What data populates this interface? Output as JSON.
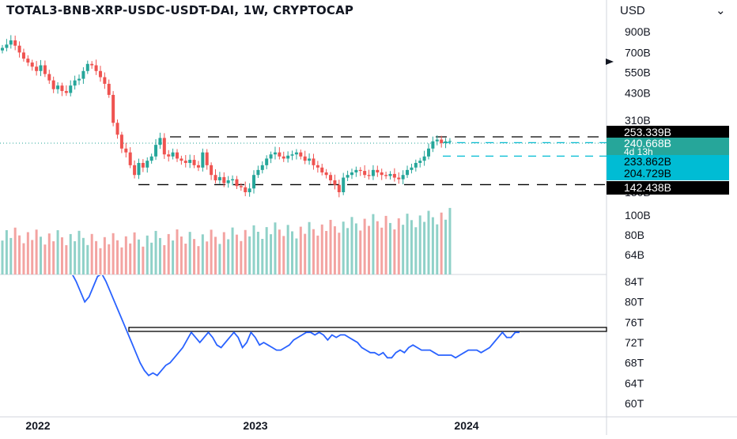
{
  "header": {
    "title": "TOTAL3-BNB-XRP-USDC-USDT-DAI, 1W, CRYPTOCAP",
    "currency": "USD",
    "chevron_icon": "chevron-down-icon"
  },
  "colors": {
    "up": "#26a69a",
    "down": "#ef5350",
    "up_vol": "#8fd1c8",
    "down_vol": "#f3a3a1",
    "indicator": "#2962ff",
    "cyan": "#00bcd4",
    "teal": "#26a69a",
    "black": "#000000"
  },
  "chart_data": [
    {
      "type": "candlestick",
      "title": "TOTAL3-BNB-XRP-USDC-USDT-DAI, 1W, CRYPTOCAP",
      "y_scale": "log",
      "y_ticks": [
        "900B",
        "700B",
        "550B",
        "430B",
        "310B",
        "130B",
        "100B",
        "80B",
        "64B"
      ],
      "x_ticks": [
        "2022",
        "2023",
        "2024"
      ],
      "x_range": [
        "2021-11-22",
        "2024-06-24"
      ],
      "price_range_billions": [
        130,
        900
      ],
      "levels": [
        {
          "value": 253.339,
          "label": "253.339B",
          "style": "black-dashed"
        },
        {
          "value": 142.438,
          "label": "142.438B",
          "style": "black-dashed"
        },
        {
          "value": 233.862,
          "label": "233.862B",
          "style": "cyan-dashed"
        },
        {
          "value": 204.729,
          "label": "204.729B",
          "style": "cyan-dashed"
        }
      ],
      "last_price": {
        "label": "240.668B",
        "countdown": "4d 13h"
      },
      "close_billions": [
        740,
        770,
        810,
        760,
        700,
        650,
        620,
        590,
        560,
        600,
        540,
        500,
        450,
        470,
        440,
        430,
        470,
        500,
        510,
        560,
        610,
        600,
        560,
        520,
        480,
        420,
        300,
        260,
        220,
        210,
        180,
        160,
        185,
        175,
        190,
        200,
        230,
        250,
        205,
        200,
        210,
        195,
        190,
        185,
        192,
        180,
        175,
        210,
        180,
        160,
        150,
        156,
        145,
        150,
        152,
        140,
        138,
        130,
        136,
        160,
        170,
        180,
        195,
        205,
        210,
        200,
        195,
        202,
        205,
        210,
        200,
        190,
        195,
        180,
        175,
        165,
        160,
        150,
        142,
        130,
        155,
        160,
        165,
        170,
        168,
        160,
        158,
        170,
        165,
        160,
        158,
        162,
        155,
        152,
        160,
        170,
        175,
        185,
        190,
        200,
        220,
        240,
        245,
        235,
        240,
        241
      ],
      "volume_billions": [
        86,
        85,
        84,
        83,
        82,
        81,
        81,
        80,
        79,
        79,
        78,
        78,
        77,
        77,
        77,
        76,
        76,
        76,
        75,
        75,
        75,
        75,
        75,
        75,
        75,
        75,
        75,
        75,
        75,
        75,
        75,
        75,
        75,
        75,
        75,
        75,
        76,
        76,
        76,
        76,
        77,
        77,
        77,
        77,
        78,
        78,
        78,
        79,
        79,
        80,
        80,
        80,
        81,
        81,
        82,
        82,
        83,
        83,
        84,
        84,
        85,
        85,
        86,
        86,
        87,
        87,
        88,
        88,
        89,
        89,
        90,
        90,
        91,
        91,
        92,
        92,
        93,
        93,
        94,
        95,
        95,
        96,
        96,
        97,
        97,
        98,
        98,
        99,
        99,
        100,
        101,
        101,
        102,
        102,
        103,
        103,
        104,
        104,
        105,
        106,
        106,
        107,
        107,
        108,
        108,
        109
      ]
    },
    {
      "type": "line",
      "y_ticks": [
        "84T",
        "80T",
        "76T",
        "72T",
        "68T",
        "64T",
        "60T"
      ],
      "y_range_trillions": [
        58,
        86
      ],
      "resistance_trillions": 74.5,
      "values_trillions": [
        86,
        84,
        82,
        80,
        81,
        83,
        85,
        86,
        84,
        82,
        80,
        78,
        76,
        74,
        72,
        70,
        68,
        66.5,
        65.5,
        66,
        65.5,
        66.5,
        67.5,
        68,
        69,
        70,
        71,
        72.5,
        74,
        73,
        72,
        73,
        74,
        73,
        71.5,
        71,
        72,
        73,
        74,
        73,
        71,
        72,
        74,
        73,
        71.5,
        72,
        71.5,
        71,
        70.5,
        70.5,
        71,
        71.5,
        72.5,
        73,
        73.5,
        74,
        74,
        73.5,
        74,
        73.5,
        72.5,
        73.5,
        73,
        73.5,
        73.5,
        73,
        72.5,
        72,
        71,
        70.5,
        70,
        70,
        69.5,
        70,
        69,
        69,
        70,
        70.5,
        70,
        71,
        71.5,
        71,
        70.5,
        70.5,
        70.5,
        70,
        69.5,
        69.5,
        69.5,
        69.5,
        69,
        69.5,
        70,
        70.5,
        70.5,
        70.5,
        70,
        70.5,
        71,
        72,
        73,
        74,
        73,
        73,
        74,
        74
      ]
    }
  ]
}
